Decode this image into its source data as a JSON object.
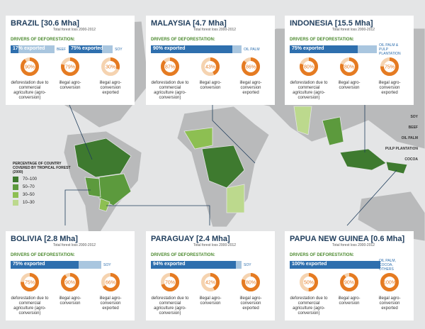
{
  "panels": [
    {
      "title": "BRAZIL [30.6 Mha]",
      "subtitle": "Total forest loss 2000-2012",
      "drivers_label": "DRIVERS OF DEFORESTATION:",
      "exports": [
        {
          "value": 17,
          "label": "17% exported",
          "product": "BEEF"
        },
        {
          "value": 75,
          "label": "75% exported",
          "product": "SOY"
        }
      ],
      "donuts": [
        {
          "value": 90,
          "label": "90%",
          "caption": "deforestation due to commercial agriculture (agro-conversion)"
        },
        {
          "value": 79,
          "label": "79%",
          "caption": "illegal agro-conversion"
        },
        {
          "value": 30,
          "label": "30%",
          "caption": "illegal agro-conversion exported"
        }
      ]
    },
    {
      "title": "MALAYSIA [4.7 Mha]",
      "subtitle": "Total forest loss 2000-2012",
      "drivers_label": "DRIVERS OF DEFORESTATION:",
      "exports": [
        {
          "value": 90,
          "label": "90% exported",
          "product": "OIL PALM"
        }
      ],
      "donuts": [
        {
          "value": 87,
          "label": "87%",
          "caption": "deforestation due to commercial agriculture (agro-conversion)"
        },
        {
          "value": 43,
          "label": "43%",
          "caption": "illegal agro-conversion"
        },
        {
          "value": 86,
          "label": "86%",
          "caption": "illegal agro-conversion exported"
        }
      ]
    },
    {
      "title": "INDONESIA [15.5 Mha]",
      "subtitle": "Total forest loss 2000-2012",
      "drivers_label": "DRIVERS OF DEFORESTATION:",
      "exports": [
        {
          "value": 75,
          "label": "75% exported",
          "product": "OIL PALM & PULP PLANTATION"
        }
      ],
      "donuts": [
        {
          "value": 80,
          "label": "80%",
          "caption": "deforestation due to commercial agriculture (agro-conversion)"
        },
        {
          "value": 80,
          "label": "80%",
          "caption": "illegal agro-conversion"
        },
        {
          "value": 75,
          "label": "75%",
          "caption": "illegal agro-conversion exported"
        }
      ]
    },
    {
      "title": "BOLIVIA [2.8 Mha]",
      "subtitle": "Total forest loss 2000-2012",
      "drivers_label": "DRIVERS OF DEFORESTATION:",
      "exports": [
        {
          "value": 75,
          "label": "75% exported",
          "product": "SOY"
        }
      ],
      "donuts": [
        {
          "value": 75,
          "label": "75%",
          "caption": "deforestation due to commercial agriculture (agro-conversion)"
        },
        {
          "value": 90,
          "label": "90%",
          "caption": "illegal agro-conversion"
        },
        {
          "value": 66,
          "label": "66%",
          "caption": "illegal agro-conversion exported"
        }
      ]
    },
    {
      "title": "PARAGUAY [2.4 Mha]",
      "subtitle": "Total forest loss 2000-2012",
      "drivers_label": "DRIVERS OF DEFORESTATION:",
      "exports": [
        {
          "value": 94,
          "label": "94% exported",
          "product": "SOY"
        }
      ],
      "donuts": [
        {
          "value": 70,
          "label": "70%",
          "caption": "deforestation due to commercial agriculture (agro-conversion)"
        },
        {
          "value": 42,
          "label": "42%",
          "caption": "illegal agro-conversion"
        },
        {
          "value": 80,
          "label": "80%",
          "caption": "illegal agro-conversion exported"
        }
      ]
    },
    {
      "title": "PAPUA NEW GUINEA [0.6 Mha]",
      "subtitle": "Total forest loss 2000-2012",
      "drivers_label": "DRIVERS OF DEFORESTATION:",
      "exports": [
        {
          "value": 100,
          "label": "100% exported",
          "product": "OIL PALM, COCOA, OTHERS"
        }
      ],
      "donuts": [
        {
          "value": 50,
          "label": "50%",
          "caption": "deforestation due to commercial agriculture (agro-conversion)"
        },
        {
          "value": 90,
          "label": "90%",
          "caption": "illegal agro-conversion"
        },
        {
          "value": 100,
          "label": "100%",
          "caption": "illegal agro-conversion exported"
        }
      ]
    }
  ],
  "legend": {
    "title": "PERCENTAGE OF COUNTRY COVERED BY TROPICAL FOREST (2000)",
    "items": [
      {
        "label": "70–100",
        "color": "#3e7a2f"
      },
      {
        "label": "50–70",
        "color": "#5c9a3d"
      },
      {
        "label": "30–50",
        "color": "#8dbf52"
      },
      {
        "label": "10–30",
        "color": "#bcd98d"
      }
    ]
  },
  "products": [
    "SOY",
    "BEEF",
    "OIL PALM",
    "PULP PLANTATION",
    "COCOA"
  ]
}
